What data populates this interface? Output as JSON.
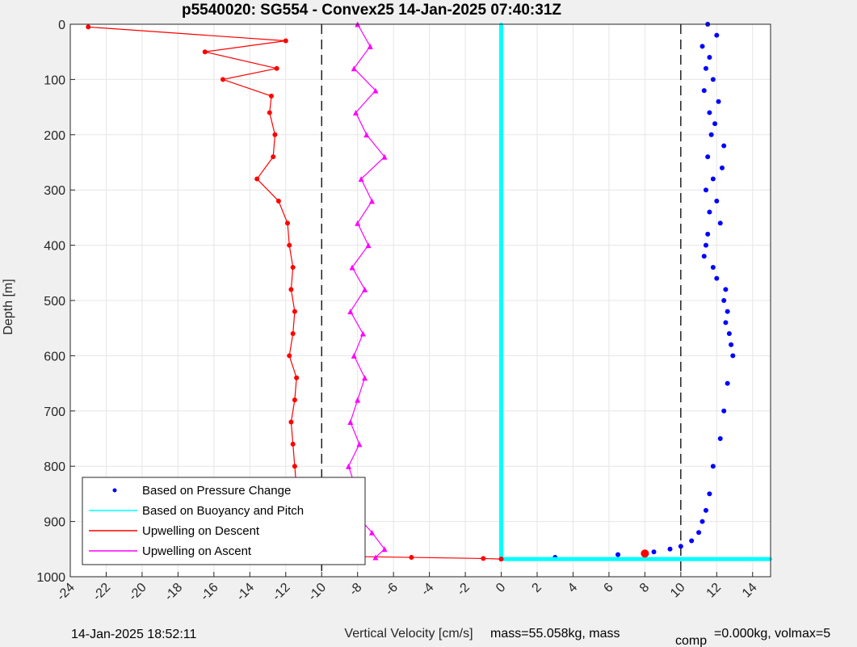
{
  "chart_data": {
    "type": "scatter",
    "title": "p5540020: SG554 - Convex25 14-Jan-2025 07:40:31Z",
    "xlabel": "Vertical Velocity [cm/s]",
    "ylabel": "Depth [m]",
    "xlim": [
      -24,
      15
    ],
    "ylim": [
      0,
      1000
    ],
    "y_reversed": true,
    "xticks": [
      -24,
      -22,
      -20,
      -18,
      -16,
      -14,
      -12,
      -10,
      -8,
      -6,
      -4,
      -2,
      0,
      2,
      4,
      6,
      8,
      10,
      12,
      14
    ],
    "yticks": [
      0,
      100,
      200,
      300,
      400,
      500,
      600,
      700,
      800,
      900,
      1000
    ],
    "grid": true,
    "reference_lines_x": [
      -10,
      10
    ],
    "legend_position": "bottom-left",
    "series": [
      {
        "name": "Based on Pressure Change",
        "color": "#0000ff",
        "marker": "dot",
        "x": [
          11.5,
          12.0,
          11.2,
          11.6,
          11.4,
          11.8,
          11.3,
          12.1,
          11.6,
          11.9,
          11.7,
          12.4,
          11.5,
          12.3,
          11.8,
          11.4,
          12.0,
          11.6,
          12.2,
          11.5,
          11.4,
          11.3,
          11.8,
          12.0,
          12.5,
          12.4,
          12.6,
          12.5,
          12.7,
          12.8,
          12.9,
          12.6,
          12.4,
          12.2,
          11.8,
          11.6,
          11.4,
          11.2,
          11.0,
          10.6,
          10.0,
          9.4,
          8.5,
          6.5,
          3.0,
          0.0
        ],
        "y": [
          0,
          20,
          40,
          60,
          80,
          100,
          120,
          140,
          160,
          180,
          200,
          220,
          240,
          260,
          280,
          300,
          320,
          340,
          360,
          380,
          400,
          420,
          440,
          460,
          480,
          500,
          520,
          540,
          560,
          580,
          600,
          650,
          700,
          750,
          800,
          850,
          880,
          900,
          920,
          935,
          945,
          950,
          955,
          960,
          965,
          968
        ]
      },
      {
        "name": "Based on Buoyancy and Pitch",
        "color": "#00ffff",
        "marker": "line",
        "x": [
          0.0,
          0.0,
          0.0,
          0.0,
          2.0,
          6.0,
          10.0,
          14.0,
          15.0
        ],
        "y": [
          0,
          300,
          600,
          968,
          968,
          968,
          968,
          968,
          968
        ]
      },
      {
        "name": "Upwelling on Descent",
        "color": "#ff0000",
        "marker": "dot-line",
        "x": [
          -23.0,
          -12.0,
          -16.5,
          -12.5,
          -15.5,
          -12.8,
          -12.9,
          -12.6,
          -12.7,
          -13.6,
          -12.4,
          -11.9,
          -11.8,
          -11.6,
          -11.7,
          -11.5,
          -11.6,
          -11.8,
          -11.4,
          -11.5,
          -11.7,
          -11.6,
          -11.5,
          -11.4,
          -11.5,
          -11.4,
          -11.6,
          -11.5,
          -11.4,
          -5.0,
          -1.0,
          0.0
        ],
        "y": [
          5,
          30,
          50,
          80,
          100,
          130,
          160,
          200,
          240,
          280,
          320,
          360,
          400,
          440,
          480,
          520,
          560,
          600,
          640,
          680,
          720,
          760,
          800,
          840,
          880,
          910,
          930,
          950,
          962,
          965,
          967,
          968
        ]
      },
      {
        "name": "Upwelling on Ascent",
        "color": "#ff00ff",
        "marker": "triangle-line",
        "x": [
          -8.0,
          -7.3,
          -8.2,
          -7.0,
          -8.1,
          -7.5,
          -6.5,
          -7.8,
          -7.2,
          -8.0,
          -7.4,
          -8.3,
          -7.6,
          -8.4,
          -7.7,
          -8.2,
          -7.6,
          -8.0,
          -8.4,
          -7.9,
          -8.5,
          -8.1,
          -8.3,
          -7.2,
          -6.5,
          -7.0
        ],
        "y": [
          0,
          40,
          80,
          120,
          160,
          200,
          240,
          280,
          320,
          360,
          400,
          440,
          480,
          520,
          560,
          600,
          640,
          680,
          720,
          760,
          800,
          840,
          880,
          920,
          950,
          965
        ]
      }
    ],
    "highlight_point": {
      "x": 8.0,
      "y": 958,
      "color": "#ff0000"
    }
  },
  "footer": {
    "timestamp": "14-Jan-2025 18:52:11",
    "mass_text": "mass=55.058kg, mass",
    "comp_sub": "comp",
    "comp_text": "=0.000kg, volmax=5"
  }
}
